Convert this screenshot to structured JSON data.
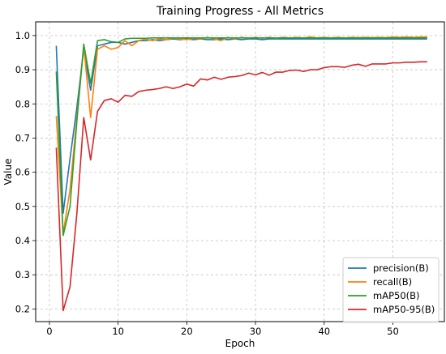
{
  "chart_data": {
    "type": "line",
    "title": "Training Progress - All Metrics",
    "xlabel": "Epoch",
    "ylabel": "Value",
    "xlim": [
      -2,
      57.5
    ],
    "ylim": [
      0.163,
      1.04
    ],
    "xticks": [
      0,
      10,
      20,
      30,
      40,
      50
    ],
    "yticks": [
      0.2,
      0.3,
      0.4,
      0.5,
      0.6,
      0.7,
      0.8,
      0.9,
      1.0
    ],
    "ytick_labels": [
      "0.2",
      "0.3",
      "0.4",
      "0.5",
      "0.6",
      "0.7",
      "0.8",
      "0.9",
      "1.0"
    ],
    "grid": true,
    "legend_position": "lower-right",
    "x": [
      1,
      2,
      3,
      4,
      5,
      6,
      7,
      8,
      9,
      10,
      11,
      12,
      13,
      14,
      15,
      16,
      17,
      18,
      19,
      20,
      21,
      22,
      23,
      24,
      25,
      26,
      27,
      28,
      29,
      30,
      31,
      32,
      33,
      34,
      35,
      36,
      37,
      38,
      39,
      40,
      41,
      42,
      43,
      44,
      45,
      46,
      47,
      48,
      49,
      50,
      51,
      52,
      53,
      54,
      55
    ],
    "series": [
      {
        "name": "precision(B)",
        "color": "#1f77b4",
        "values": [
          0.97,
          0.48,
          0.64,
          0.79,
          0.96,
          0.84,
          0.97,
          0.975,
          0.98,
          0.98,
          0.975,
          0.98,
          0.985,
          0.985,
          0.988,
          0.985,
          0.988,
          0.99,
          0.988,
          0.99,
          0.988,
          0.99,
          0.988,
          0.988,
          0.99,
          0.988,
          0.99,
          0.988,
          0.99,
          0.99,
          0.988,
          0.99,
          0.99,
          0.99,
          0.99,
          0.99,
          0.99,
          0.99,
          0.99,
          0.99,
          0.99,
          0.99,
          0.99,
          0.99,
          0.99,
          0.99,
          0.99,
          0.99,
          0.99,
          0.99,
          0.99,
          0.99,
          0.99,
          0.99,
          0.99
        ]
      },
      {
        "name": "recall(B)",
        "color": "#ff7f0e",
        "values": [
          0.765,
          0.42,
          0.55,
          0.76,
          0.97,
          0.76,
          0.96,
          0.97,
          0.96,
          0.965,
          0.985,
          0.97,
          0.985,
          0.99,
          0.985,
          0.99,
          0.988,
          0.992,
          0.99,
          0.988,
          0.992,
          0.99,
          0.995,
          0.99,
          0.985,
          0.995,
          0.99,
          0.995,
          0.992,
          0.995,
          0.992,
          0.995,
          0.992,
          0.995,
          0.993,
          0.995,
          0.993,
          0.996,
          0.993,
          0.995,
          0.993,
          0.995,
          0.993,
          0.995,
          0.994,
          0.995,
          0.994,
          0.995,
          0.994,
          0.996,
          0.995,
          0.996,
          0.995,
          0.996,
          0.996
        ]
      },
      {
        "name": "mAP50(B)",
        "color": "#2ca02c",
        "values": [
          0.895,
          0.415,
          0.5,
          0.75,
          0.975,
          0.86,
          0.985,
          0.988,
          0.982,
          0.98,
          0.99,
          0.992,
          0.992,
          0.992,
          0.993,
          0.993,
          0.993,
          0.993,
          0.993,
          0.993,
          0.993,
          0.993,
          0.993,
          0.993,
          0.993,
          0.993,
          0.993,
          0.993,
          0.993,
          0.993,
          0.993,
          0.993,
          0.993,
          0.993,
          0.993,
          0.993,
          0.993,
          0.993,
          0.993,
          0.993,
          0.993,
          0.993,
          0.993,
          0.993,
          0.993,
          0.993,
          0.993,
          0.993,
          0.993,
          0.993,
          0.993,
          0.993,
          0.993,
          0.993,
          0.993
        ]
      },
      {
        "name": "mAP50-95(B)",
        "color": "#d62728",
        "values": [
          0.672,
          0.195,
          0.265,
          0.48,
          0.76,
          0.636,
          0.778,
          0.81,
          0.815,
          0.805,
          0.825,
          0.822,
          0.836,
          0.84,
          0.842,
          0.845,
          0.85,
          0.845,
          0.85,
          0.858,
          0.852,
          0.873,
          0.87,
          0.878,
          0.872,
          0.878,
          0.88,
          0.883,
          0.89,
          0.885,
          0.892,
          0.884,
          0.893,
          0.893,
          0.898,
          0.899,
          0.895,
          0.9,
          0.9,
          0.906,
          0.909,
          0.909,
          0.907,
          0.913,
          0.916,
          0.91,
          0.917,
          0.917,
          0.917,
          0.92,
          0.92,
          0.922,
          0.922,
          0.923,
          0.923
        ]
      }
    ]
  }
}
